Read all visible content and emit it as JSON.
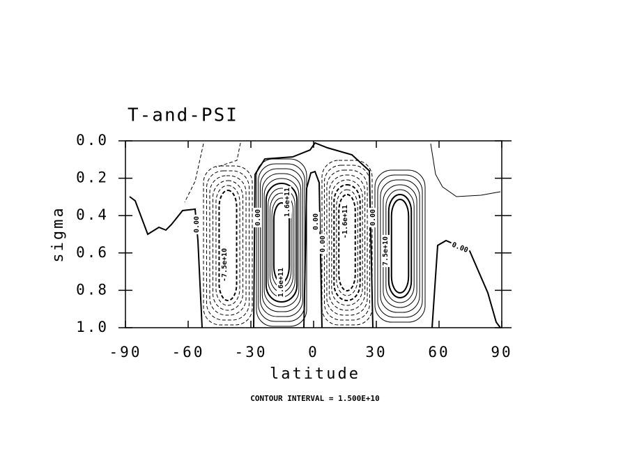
{
  "chart_data": {
    "type": "contour",
    "title": "T-and-PSI",
    "x_label": "latitude",
    "y_label": "sigma",
    "footer": "CONTOUR INTERVAL = 1.500E+10",
    "xlim": [
      -90,
      90
    ],
    "xticks": [
      -90,
      -60,
      -30,
      0,
      30,
      60,
      90
    ],
    "ylim": [
      1.0,
      0.0
    ],
    "yticks": [
      {
        "value": 0.0,
        "label": "0.0"
      },
      {
        "value": 0.2,
        "label": "0.2"
      },
      {
        "value": 0.4,
        "label": "0.4"
      },
      {
        "value": 0.6,
        "label": "0.6"
      },
      {
        "value": 0.8,
        "label": "0.8"
      },
      {
        "value": 1.0,
        "label": "1.0"
      }
    ],
    "contour_labels": [
      "0.00",
      "-7.5e+10",
      "0.00",
      "1.6e+11",
      "1.6e+11",
      "0.00",
      "0.00",
      "-1.6e+11",
      "0.00",
      "7.5e+10",
      "0.00"
    ]
  }
}
